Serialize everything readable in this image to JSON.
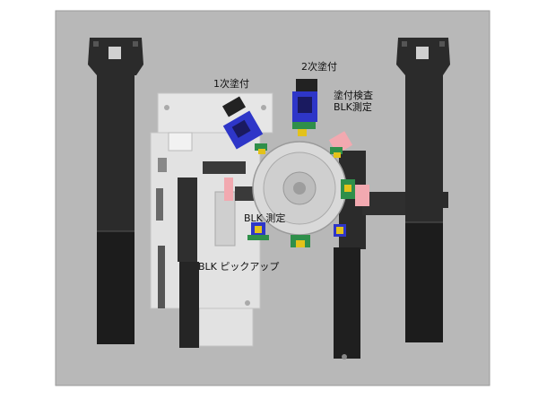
{
  "title": "",
  "colors": {
    "base_plate": "#b8b8b8",
    "rail": "#2b2b2b",
    "rail_dark": "#1c1c1c",
    "inner_plate": "#e6e6e6",
    "turntable": "#d9d9d9",
    "head_blue": "#2e36c8",
    "head_green": "#2f8f4a",
    "head_yellow": "#e3c21a",
    "accent_pink": "#f2a9b0"
  },
  "labels": {
    "first_coat": "1次塗付",
    "second_coat": "2次塗付",
    "coat_inspect_line1": "塗付検査",
    "coat_inspect_line2": "BLK測定",
    "blk_measure": "BLK 測定",
    "blk_pickup": "BLK ピックアップ"
  }
}
